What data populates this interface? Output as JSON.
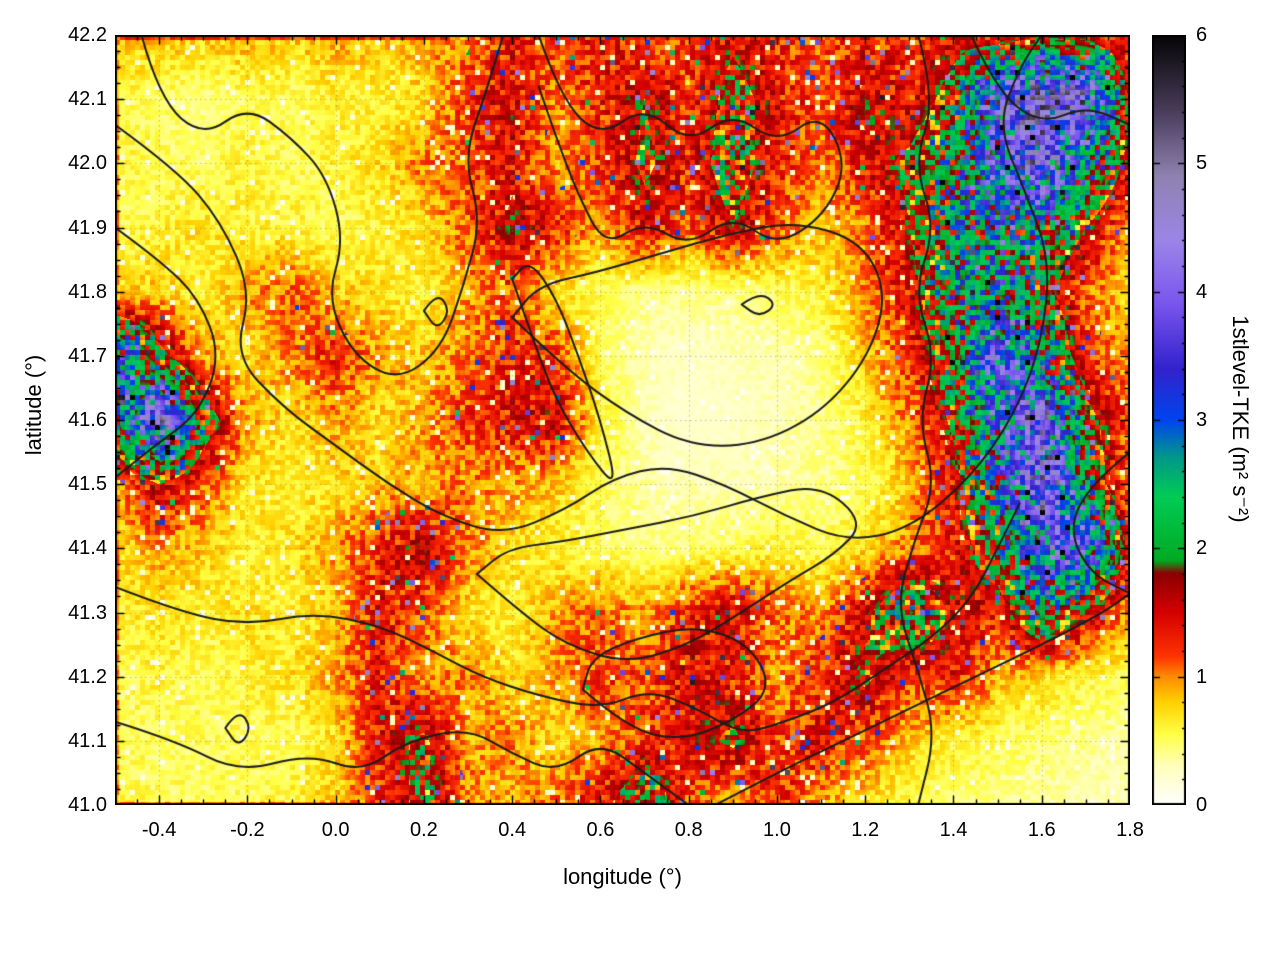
{
  "axes": {
    "xlabel": "longitude (°)",
    "ylabel": "latitude (°)",
    "xlim": [
      -0.5,
      1.8
    ],
    "ylim": [
      41.0,
      42.2
    ],
    "xticks": [
      -0.4,
      -0.2,
      0.0,
      0.2,
      0.4,
      0.6,
      0.8,
      1.0,
      1.2,
      1.4,
      1.6,
      1.8
    ],
    "xtick_labels": [
      "-0.4",
      "-0.2",
      "0.0",
      "0.2",
      "0.4",
      "0.6",
      "0.8",
      "1.0",
      "1.2",
      "1.4",
      "1.6",
      "1.8"
    ],
    "yticks": [
      41.0,
      41.1,
      41.2,
      41.3,
      41.4,
      41.5,
      41.6,
      41.7,
      41.8,
      41.9,
      42.0,
      42.1,
      42.2
    ],
    "ytick_labels": [
      "41.0",
      "41.1",
      "41.2",
      "41.3",
      "41.4",
      "41.5",
      "41.6",
      "41.7",
      "41.8",
      "41.9",
      "42.0",
      "42.1",
      "42.2"
    ],
    "grid": true
  },
  "colorbar": {
    "label": "1stlevel-TKE (m² s⁻²)",
    "min": 0,
    "max": 6,
    "ticks": [
      0,
      1,
      2,
      3,
      4,
      5,
      6
    ],
    "tick_labels": [
      "0",
      "1",
      "2",
      "3",
      "4",
      "5",
      "6"
    ]
  },
  "chart_data": {
    "type": "heatmap",
    "title": "",
    "xlabel": "longitude (°)",
    "ylabel": "latitude (°)",
    "zlabel": "1stlevel-TKE (m² s⁻²)",
    "xlim": [
      -0.5,
      1.8
    ],
    "ylim": [
      41.0,
      42.2
    ],
    "zlim": [
      0,
      6
    ],
    "x": [
      -0.5,
      -0.4,
      -0.3,
      -0.2,
      -0.1,
      0.0,
      0.1,
      0.2,
      0.3,
      0.4,
      0.5,
      0.6,
      0.7,
      0.8,
      0.9,
      1.0,
      1.1,
      1.2,
      1.3,
      1.4,
      1.5,
      1.6,
      1.7,
      1.8
    ],
    "y": [
      42.2,
      42.1,
      42.0,
      41.9,
      41.8,
      41.7,
      41.6,
      41.5,
      41.4,
      41.3,
      41.2,
      41.1,
      41.0
    ],
    "values": [
      [
        0.9,
        0.8,
        0.8,
        0.9,
        0.8,
        0.9,
        0.8,
        0.9,
        1.0,
        1.3,
        1.1,
        1.4,
        1.1,
        1.2,
        1.5,
        1.2,
        1.1,
        1.3,
        1.2,
        1.4,
        1.2,
        1.5,
        1.3,
        1.1
      ],
      [
        0.5,
        0.5,
        0.4,
        0.5,
        0.5,
        0.6,
        0.6,
        0.7,
        1.2,
        1.5,
        1.0,
        1.3,
        1.6,
        1.2,
        1.8,
        1.4,
        1.1,
        1.6,
        1.3,
        1.8,
        3.8,
        4.8,
        4.2,
        1.5
      ],
      [
        0.6,
        0.5,
        0.5,
        0.6,
        0.5,
        0.6,
        0.7,
        1.0,
        1.1,
        1.4,
        0.9,
        1.2,
        1.7,
        1.3,
        1.9,
        1.3,
        1.0,
        1.4,
        1.7,
        2.2,
        3.2,
        4.4,
        2.6,
        1.4
      ],
      [
        0.5,
        0.6,
        0.7,
        0.6,
        0.6,
        0.5,
        0.6,
        0.7,
        1.1,
        1.6,
        1.3,
        0.9,
        1.4,
        1.1,
        1.6,
        1.1,
        0.8,
        1.0,
        1.6,
        2.4,
        2.8,
        2.2,
        1.6,
        0.9
      ],
      [
        0.7,
        0.8,
        0.6,
        0.9,
        1.1,
        0.8,
        0.7,
        0.6,
        0.9,
        1.1,
        0.7,
        0.5,
        0.4,
        0.4,
        0.4,
        0.5,
        0.6,
        1.0,
        1.4,
        2.2,
        2.6,
        1.8,
        1.1,
        0.7
      ],
      [
        3.2,
        1.8,
        0.9,
        0.7,
        1.0,
        1.3,
        0.9,
        0.8,
        1.0,
        1.3,
        1.2,
        0.5,
        0.3,
        0.25,
        0.3,
        0.3,
        0.4,
        0.8,
        1.2,
        2.0,
        3.6,
        2.4,
        1.2,
        0.9
      ],
      [
        2.2,
        4.3,
        2.0,
        0.9,
        0.7,
        0.9,
        0.7,
        0.9,
        1.2,
        1.4,
        1.5,
        0.6,
        0.3,
        0.2,
        0.25,
        0.3,
        0.4,
        0.6,
        1.0,
        1.7,
        3.2,
        4.2,
        1.8,
        1.1
      ],
      [
        0.9,
        1.6,
        1.1,
        0.7,
        0.6,
        0.7,
        0.8,
        0.9,
        1.0,
        0.9,
        0.8,
        0.5,
        0.35,
        0.3,
        0.3,
        0.35,
        0.4,
        0.5,
        0.8,
        1.4,
        2.4,
        4.4,
        2.2,
        0.9
      ],
      [
        0.7,
        0.9,
        0.8,
        0.6,
        0.7,
        0.9,
        1.3,
        1.6,
        1.0,
        0.7,
        0.6,
        0.5,
        0.4,
        0.45,
        0.5,
        0.6,
        0.5,
        0.7,
        1.0,
        1.3,
        2.0,
        3.4,
        3.8,
        1.3
      ],
      [
        0.6,
        0.7,
        0.6,
        0.7,
        0.6,
        0.8,
        1.4,
        1.1,
        0.7,
        0.6,
        0.9,
        1.1,
        0.9,
        1.3,
        1.5,
        1.1,
        0.9,
        1.5,
        2.2,
        1.5,
        1.3,
        2.3,
        1.6,
        0.9
      ],
      [
        0.5,
        0.6,
        0.5,
        0.6,
        0.7,
        0.9,
        1.3,
        0.9,
        1.0,
        0.7,
        0.9,
        1.2,
        1.1,
        1.5,
        1.3,
        0.9,
        1.3,
        1.7,
        1.2,
        1.4,
        0.9,
        0.7,
        0.6,
        0.5
      ],
      [
        0.5,
        0.5,
        0.5,
        0.5,
        0.5,
        0.7,
        1.4,
        1.7,
        0.9,
        1.0,
        0.7,
        0.9,
        1.2,
        1.4,
        1.7,
        1.2,
        1.4,
        1.1,
        0.8,
        0.6,
        0.5,
        0.45,
        0.4,
        0.35
      ],
      [
        0.6,
        0.5,
        0.5,
        0.5,
        0.6,
        0.8,
        1.2,
        1.8,
        1.0,
        0.8,
        1.1,
        1.4,
        2.2,
        1.1,
        0.8,
        1.3,
        0.9,
        0.7,
        0.5,
        0.45,
        0.4,
        0.35,
        0.3,
        0.3
      ]
    ],
    "colormap_stops": [
      [
        0.0,
        "#ffffff"
      ],
      [
        0.3,
        "#ffffbb"
      ],
      [
        0.55,
        "#ffff44"
      ],
      [
        0.8,
        "#ffd000"
      ],
      [
        1.0,
        "#ff8800"
      ],
      [
        1.15,
        "#ff3300"
      ],
      [
        1.5,
        "#d40000"
      ],
      [
        1.8,
        "#8b0000"
      ],
      [
        1.9,
        "#00aa22"
      ],
      [
        2.4,
        "#00cc55"
      ],
      [
        2.7,
        "#009988"
      ],
      [
        3.0,
        "#0044ee"
      ],
      [
        3.4,
        "#3322cc"
      ],
      [
        3.9,
        "#7a55ee"
      ],
      [
        4.4,
        "#9b85e8"
      ],
      [
        4.9,
        "#8f82b0"
      ],
      [
        5.4,
        "#4a3d5c"
      ],
      [
        6.0,
        "#050505"
      ]
    ],
    "contour_color": "#1c1c1c",
    "contours": [
      {
        "points": [
          [
            -0.5,
            42.06
          ],
          [
            -0.36,
            41.99
          ],
          [
            -0.26,
            41.91
          ],
          [
            -0.19,
            41.8
          ],
          [
            -0.23,
            41.7
          ],
          [
            -0.12,
            41.62
          ],
          [
            0.0,
            41.56
          ],
          [
            0.12,
            41.5
          ],
          [
            0.24,
            41.45
          ],
          [
            0.38,
            41.42
          ],
          [
            0.52,
            41.46
          ],
          [
            0.63,
            41.51
          ],
          [
            0.75,
            41.53
          ],
          [
            0.88,
            41.5
          ],
          [
            1.02,
            41.45
          ],
          [
            1.16,
            41.41
          ],
          [
            1.3,
            41.43
          ],
          [
            1.44,
            41.51
          ],
          [
            1.54,
            41.61
          ],
          [
            1.6,
            41.72
          ],
          [
            1.62,
            41.85
          ],
          [
            1.56,
            41.96
          ],
          [
            1.5,
            42.06
          ],
          [
            1.55,
            42.15
          ],
          [
            1.6,
            42.2
          ]
        ]
      },
      {
        "points": [
          [
            0.4,
            41.76
          ],
          [
            0.52,
            41.68
          ],
          [
            0.66,
            41.61
          ],
          [
            0.8,
            41.56
          ],
          [
            0.95,
            41.56
          ],
          [
            1.1,
            41.61
          ],
          [
            1.21,
            41.7
          ],
          [
            1.25,
            41.8
          ],
          [
            1.19,
            41.88
          ],
          [
            1.04,
            41.91
          ],
          [
            0.89,
            41.89
          ],
          [
            0.74,
            41.86
          ],
          [
            0.59,
            41.83
          ],
          [
            0.46,
            41.81
          ],
          [
            0.4,
            41.76
          ]
        ]
      },
      {
        "points": [
          [
            -0.44,
            42.2
          ],
          [
            -0.4,
            42.1
          ],
          [
            -0.3,
            42.04
          ],
          [
            -0.2,
            42.09
          ],
          [
            -0.1,
            42.04
          ],
          [
            -0.02,
            41.98
          ],
          [
            0.02,
            41.88
          ],
          [
            -0.02,
            41.79
          ],
          [
            0.04,
            41.7
          ],
          [
            0.14,
            41.66
          ],
          [
            0.24,
            41.71
          ],
          [
            0.29,
            41.81
          ],
          [
            0.33,
            41.91
          ],
          [
            0.29,
            42.01
          ],
          [
            0.34,
            42.11
          ],
          [
            0.38,
            42.2
          ]
        ]
      },
      {
        "points": [
          [
            0.46,
            42.2
          ],
          [
            0.51,
            42.1
          ],
          [
            0.6,
            42.04
          ],
          [
            0.7,
            42.09
          ],
          [
            0.8,
            42.03
          ],
          [
            0.9,
            42.08
          ],
          [
            1.0,
            42.03
          ],
          [
            1.1,
            42.08
          ],
          [
            1.16,
            42.0
          ],
          [
            1.11,
            41.92
          ],
          [
            1.0,
            41.87
          ],
          [
            0.9,
            41.92
          ],
          [
            0.8,
            41.87
          ],
          [
            0.7,
            41.91
          ],
          [
            0.61,
            41.87
          ],
          [
            0.55,
            41.95
          ],
          [
            0.5,
            42.04
          ],
          [
            0.46,
            42.12
          ]
        ]
      },
      {
        "points": [
          [
            1.32,
            42.2
          ],
          [
            1.36,
            42.1
          ],
          [
            1.31,
            42.0
          ],
          [
            1.36,
            41.9
          ],
          [
            1.31,
            41.8
          ],
          [
            1.36,
            41.7
          ],
          [
            1.32,
            41.6
          ],
          [
            1.36,
            41.5
          ],
          [
            1.31,
            41.41
          ],
          [
            1.27,
            41.31
          ],
          [
            1.32,
            41.21
          ],
          [
            1.36,
            41.11
          ],
          [
            1.32,
            41.0
          ]
        ]
      },
      {
        "points": [
          [
            0.86,
            41.0
          ],
          [
            1.0,
            41.05
          ],
          [
            1.15,
            41.1
          ],
          [
            1.3,
            41.15
          ],
          [
            1.45,
            41.2
          ],
          [
            1.6,
            41.25
          ],
          [
            1.74,
            41.3
          ],
          [
            1.8,
            41.33
          ]
        ]
      },
      {
        "points": [
          [
            -0.5,
            41.13
          ],
          [
            -0.36,
            41.1
          ],
          [
            -0.22,
            41.05
          ],
          [
            -0.06,
            41.08
          ],
          [
            0.06,
            41.05
          ],
          [
            0.16,
            41.1
          ],
          [
            0.3,
            41.12
          ],
          [
            0.4,
            41.08
          ],
          [
            0.5,
            41.05
          ],
          [
            0.6,
            41.1
          ],
          [
            0.7,
            41.05
          ],
          [
            0.8,
            41.0
          ]
        ]
      },
      {
        "points": [
          [
            -0.5,
            41.9
          ],
          [
            -0.4,
            41.85
          ],
          [
            -0.31,
            41.79
          ],
          [
            -0.26,
            41.7
          ],
          [
            -0.31,
            41.61
          ],
          [
            -0.41,
            41.56
          ],
          [
            -0.5,
            41.51
          ]
        ]
      },
      {
        "points": [
          [
            -0.5,
            41.34
          ],
          [
            -0.35,
            41.3
          ],
          [
            -0.2,
            41.28
          ],
          [
            -0.05,
            41.3
          ],
          [
            0.1,
            41.28
          ],
          [
            0.22,
            41.24
          ],
          [
            0.33,
            41.2
          ],
          [
            0.46,
            41.17
          ],
          [
            0.6,
            41.15
          ],
          [
            0.71,
            41.18
          ],
          [
            0.82,
            41.15
          ],
          [
            0.92,
            41.11
          ],
          [
            1.02,
            41.13
          ],
          [
            1.13,
            41.16
          ],
          [
            1.24,
            41.21
          ],
          [
            1.35,
            41.26
          ],
          [
            1.44,
            41.32
          ],
          [
            1.5,
            41.4
          ],
          [
            1.55,
            41.47
          ]
        ]
      },
      {
        "points": [
          [
            0.32,
            41.36
          ],
          [
            0.42,
            41.3
          ],
          [
            0.52,
            41.25
          ],
          [
            0.66,
            41.22
          ],
          [
            0.8,
            41.25
          ],
          [
            0.92,
            41.3
          ],
          [
            1.03,
            41.35
          ],
          [
            1.13,
            41.39
          ],
          [
            1.2,
            41.44
          ],
          [
            1.1,
            41.5
          ],
          [
            0.96,
            41.48
          ],
          [
            0.81,
            41.45
          ],
          [
            0.66,
            41.43
          ],
          [
            0.51,
            41.41
          ],
          [
            0.39,
            41.4
          ],
          [
            0.32,
            41.36
          ]
        ]
      },
      {
        "points": [
          [
            0.56,
            41.18
          ],
          [
            0.66,
            41.12
          ],
          [
            0.78,
            41.1
          ],
          [
            0.9,
            41.13
          ],
          [
            0.99,
            41.18
          ],
          [
            0.94,
            41.25
          ],
          [
            0.82,
            41.28
          ],
          [
            0.68,
            41.26
          ],
          [
            0.58,
            41.23
          ],
          [
            0.56,
            41.18
          ]
        ]
      },
      {
        "points": [
          [
            -0.25,
            41.12
          ],
          [
            -0.22,
            41.15
          ],
          [
            -0.19,
            41.12
          ],
          [
            -0.22,
            41.09
          ],
          [
            -0.25,
            41.12
          ]
        ]
      },
      {
        "points": [
          [
            0.2,
            41.77
          ],
          [
            0.23,
            41.8
          ],
          [
            0.26,
            41.77
          ],
          [
            0.23,
            41.74
          ],
          [
            0.2,
            41.77
          ]
        ]
      },
      {
        "points": [
          [
            0.4,
            41.82
          ],
          [
            0.45,
            41.72
          ],
          [
            0.5,
            41.63
          ],
          [
            0.57,
            41.55
          ],
          [
            0.64,
            41.49
          ],
          [
            0.6,
            41.6
          ],
          [
            0.55,
            41.7
          ],
          [
            0.5,
            41.79
          ],
          [
            0.44,
            41.85
          ],
          [
            0.4,
            41.82
          ]
        ]
      },
      {
        "points": [
          [
            1.44,
            42.2
          ],
          [
            1.5,
            42.11
          ],
          [
            1.6,
            42.06
          ],
          [
            1.7,
            42.09
          ],
          [
            1.8,
            42.06
          ]
        ]
      },
      {
        "points": [
          [
            1.8,
            41.55
          ],
          [
            1.71,
            41.5
          ],
          [
            1.66,
            41.43
          ],
          [
            1.71,
            41.36
          ],
          [
            1.8,
            41.33
          ]
        ]
      },
      {
        "points": [
          [
            0.92,
            41.78
          ],
          [
            0.96,
            41.8
          ],
          [
            1.0,
            41.78
          ],
          [
            0.96,
            41.76
          ],
          [
            0.92,
            41.78
          ]
        ]
      }
    ]
  }
}
